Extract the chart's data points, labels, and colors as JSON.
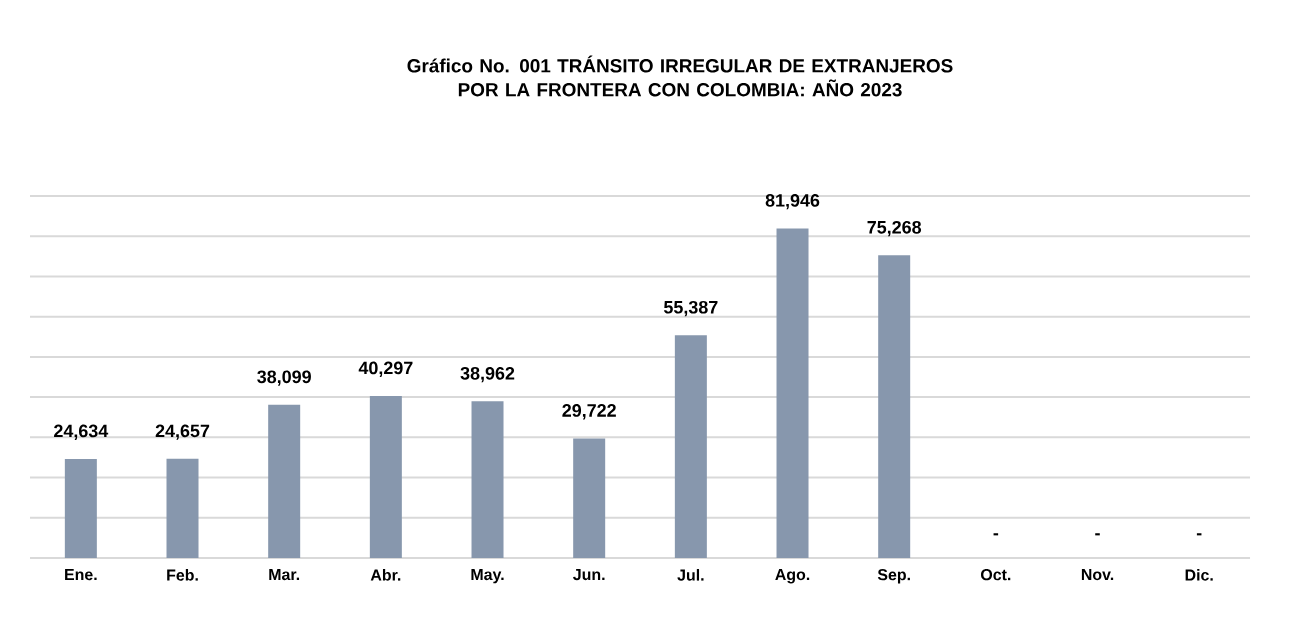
{
  "chart_data": {
    "type": "bar",
    "title": "Gráfico No. 001  TRÁNSITO IRREGULAR DE EXTRANJEROS POR LA FRONTERA CON COLOMBIA: AÑO 2023",
    "categories": [
      "Ene.",
      "Feb.",
      "Mar.",
      "Abr.",
      "May.",
      "Jun.",
      "Jul.",
      "Ago.",
      "Sep.",
      "Oct.",
      "Nov.",
      "Dic."
    ],
    "values": [
      24634,
      24657,
      38099,
      40297,
      38962,
      29722,
      55387,
      81946,
      75268,
      null,
      null,
      null
    ],
    "value_labels": [
      "24,634",
      "24,657",
      "38,099",
      "40,297",
      "38,962",
      "29,722",
      "55,387",
      "81,946",
      "75,268",
      "-",
      "-",
      "-"
    ],
    "color": "#8797ad",
    "ylim": [
      0,
      90000
    ],
    "yticks": [
      {
        "value": 0,
        "label": null
      },
      {
        "value": 10000,
        "label": null
      },
      {
        "value": 20000,
        "label": null
      },
      {
        "value": 30000,
        "label": null
      },
      {
        "value": 40000,
        "label": null
      },
      {
        "value": 50000,
        "label": null
      },
      {
        "value": 60000,
        "label": null
      },
      {
        "value": 70000,
        "label": null
      },
      {
        "value": 80000,
        "label": null
      },
      {
        "value": 90000,
        "label": null
      }
    ],
    "tick_labels": "x",
    "grid": "y"
  }
}
